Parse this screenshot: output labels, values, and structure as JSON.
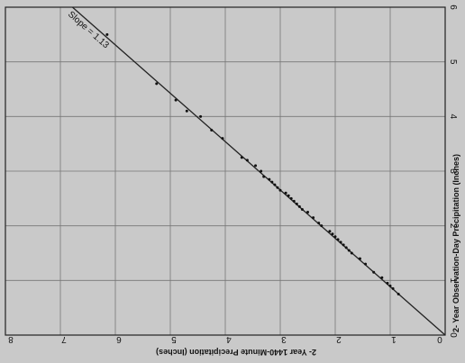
{
  "chart_data": {
    "type": "scatter",
    "xlabel": "2- Year Observation-Day Precipitation (Inches)",
    "ylabel": "2- Year 1440-Minute Precipitation (Inches)",
    "xlim": [
      0,
      6
    ],
    "ylim": [
      0,
      8
    ],
    "x_ticks": [
      "0",
      "1",
      "2",
      "3",
      "4",
      "5",
      "6"
    ],
    "y_ticks": [
      "0",
      "1",
      "2",
      "3",
      "4",
      "5",
      "6",
      "7",
      "8"
    ],
    "grid": true,
    "fit_line": {
      "label": "Slope = 1.13",
      "slope": 1.13,
      "intercept": 0
    },
    "points": [
      {
        "x": 0.75,
        "y": 0.85
      },
      {
        "x": 0.85,
        "y": 0.95
      },
      {
        "x": 0.9,
        "y": 1.0
      },
      {
        "x": 0.95,
        "y": 1.05
      },
      {
        "x": 1.05,
        "y": 1.15
      },
      {
        "x": 1.15,
        "y": 1.3
      },
      {
        "x": 1.3,
        "y": 1.45
      },
      {
        "x": 1.4,
        "y": 1.55
      },
      {
        "x": 1.5,
        "y": 1.7
      },
      {
        "x": 1.55,
        "y": 1.75
      },
      {
        "x": 1.6,
        "y": 1.8
      },
      {
        "x": 1.65,
        "y": 1.85
      },
      {
        "x": 1.7,
        "y": 1.9
      },
      {
        "x": 1.75,
        "y": 1.95
      },
      {
        "x": 1.8,
        "y": 2.0
      },
      {
        "x": 1.85,
        "y": 2.05
      },
      {
        "x": 1.9,
        "y": 2.1
      },
      {
        "x": 2.0,
        "y": 2.25
      },
      {
        "x": 2.05,
        "y": 2.3
      },
      {
        "x": 2.15,
        "y": 2.4
      },
      {
        "x": 2.25,
        "y": 2.5
      },
      {
        "x": 2.3,
        "y": 2.6
      },
      {
        "x": 2.35,
        "y": 2.65
      },
      {
        "x": 2.4,
        "y": 2.7
      },
      {
        "x": 2.45,
        "y": 2.75
      },
      {
        "x": 2.5,
        "y": 2.8
      },
      {
        "x": 2.55,
        "y": 2.85
      },
      {
        "x": 2.6,
        "y": 2.9
      },
      {
        "x": 2.65,
        "y": 3.0
      },
      {
        "x": 2.7,
        "y": 3.05
      },
      {
        "x": 2.75,
        "y": 3.1
      },
      {
        "x": 2.8,
        "y": 3.15
      },
      {
        "x": 2.85,
        "y": 3.2
      },
      {
        "x": 2.9,
        "y": 3.3
      },
      {
        "x": 3.0,
        "y": 3.35
      },
      {
        "x": 3.1,
        "y": 3.45
      },
      {
        "x": 3.2,
        "y": 3.6
      },
      {
        "x": 3.25,
        "y": 3.7
      },
      {
        "x": 3.6,
        "y": 4.05
      },
      {
        "x": 3.75,
        "y": 4.25
      },
      {
        "x": 4.0,
        "y": 4.45
      },
      {
        "x": 4.1,
        "y": 4.7
      },
      {
        "x": 4.3,
        "y": 4.9
      },
      {
        "x": 4.6,
        "y": 5.25
      },
      {
        "x": 5.5,
        "y": 6.15
      }
    ]
  }
}
